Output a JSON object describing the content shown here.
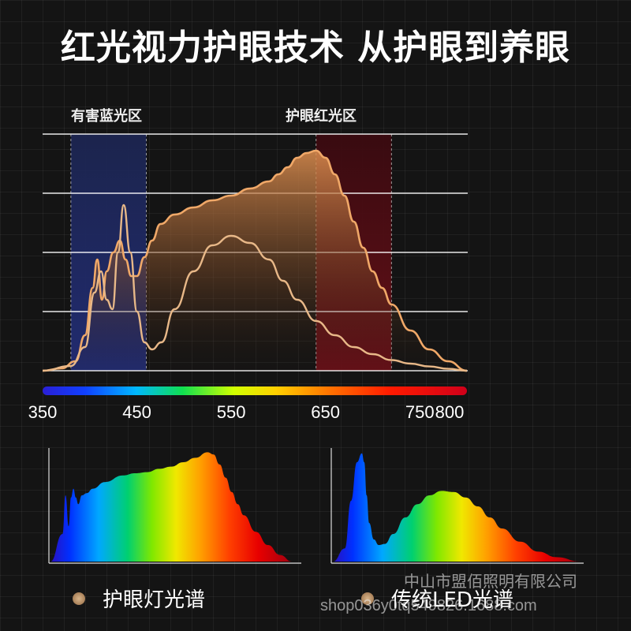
{
  "title": "红光视力护眼技术 从护眼到养眼",
  "zones": {
    "blue_label": "有害蓝光区",
    "blue_range": [
      380,
      460
    ],
    "red_label": "护眼红光区",
    "red_range": [
      640,
      720
    ]
  },
  "colors": {
    "background": "#141414",
    "eye_care_curve": "#f0a868",
    "traditional_curve": "#e8b888",
    "blue_zone": "#1e2a60",
    "red_zone": "#5a0e14"
  },
  "chart_data": {
    "type": "line",
    "xlim": [
      350,
      800
    ],
    "ylim": [
      0,
      1
    ],
    "grid": true,
    "x_ticks": [
      "350",
      "450",
      "550",
      "650",
      "750",
      "800"
    ],
    "x_tick_values": [
      350,
      450,
      550,
      650,
      750,
      800
    ],
    "series": [
      {
        "name": "护眼灯光谱",
        "fill": true,
        "x": [
          350,
          370,
          385,
          395,
          403,
          408,
          413,
          418,
          425,
          432,
          438,
          444,
          450,
          458,
          466,
          475,
          490,
          510,
          530,
          550,
          570,
          590,
          600,
          610,
          620,
          630,
          640,
          650,
          660,
          670,
          680,
          690,
          700,
          710,
          720,
          740,
          760,
          780,
          800
        ],
        "y": [
          0.0,
          0.01,
          0.04,
          0.15,
          0.35,
          0.47,
          0.3,
          0.42,
          0.5,
          0.55,
          0.47,
          0.4,
          0.4,
          0.48,
          0.55,
          0.62,
          0.66,
          0.69,
          0.72,
          0.74,
          0.77,
          0.8,
          0.83,
          0.86,
          0.9,
          0.92,
          0.93,
          0.9,
          0.83,
          0.74,
          0.63,
          0.52,
          0.42,
          0.35,
          0.28,
          0.17,
          0.09,
          0.04,
          0.0
        ]
      },
      {
        "name": "传统LED光谱",
        "fill": false,
        "x": [
          350,
          380,
          395,
          405,
          412,
          418,
          424,
          430,
          436,
          443,
          450,
          458,
          466,
          476,
          490,
          510,
          530,
          550,
          570,
          590,
          605,
          620,
          640,
          660,
          680,
          700,
          720,
          740,
          760,
          780,
          800
        ],
        "y": [
          0.0,
          0.02,
          0.1,
          0.33,
          0.42,
          0.3,
          0.26,
          0.5,
          0.7,
          0.5,
          0.25,
          0.12,
          0.09,
          0.12,
          0.26,
          0.42,
          0.53,
          0.57,
          0.54,
          0.47,
          0.38,
          0.3,
          0.21,
          0.15,
          0.1,
          0.07,
          0.045,
          0.03,
          0.018,
          0.008,
          0.0
        ]
      }
    ]
  },
  "comparison": {
    "eye_care": {
      "label": "护眼灯光谱",
      "x": [
        380,
        400,
        405,
        410,
        414,
        418,
        422,
        426,
        432,
        440,
        450,
        470,
        500,
        520,
        540,
        560,
        580,
        600,
        620,
        640,
        650,
        660,
        670,
        680,
        690,
        700,
        720,
        740,
        760,
        780
      ],
      "y": [
        0.0,
        0.25,
        0.6,
        0.32,
        0.58,
        0.66,
        0.58,
        0.52,
        0.6,
        0.62,
        0.66,
        0.72,
        0.78,
        0.8,
        0.81,
        0.84,
        0.86,
        0.9,
        0.94,
        0.99,
        0.97,
        0.88,
        0.76,
        0.63,
        0.52,
        0.42,
        0.27,
        0.15,
        0.06,
        0.0
      ]
    },
    "traditional": {
      "label": "传统LED光谱",
      "x": [
        380,
        400,
        410,
        420,
        428,
        432,
        436,
        440,
        448,
        456,
        466,
        480,
        500,
        520,
        540,
        560,
        580,
        600,
        620,
        640,
        660,
        690,
        720,
        750,
        790
      ],
      "y": [
        0.0,
        0.12,
        0.55,
        0.9,
        0.98,
        0.9,
        0.6,
        0.35,
        0.2,
        0.15,
        0.16,
        0.25,
        0.4,
        0.52,
        0.6,
        0.64,
        0.63,
        0.58,
        0.5,
        0.4,
        0.3,
        0.18,
        0.09,
        0.04,
        0.0
      ]
    }
  },
  "watermark": {
    "company": "中山市盟佰照明有限公司",
    "shop": "shop036y0tq549826.1688.com"
  }
}
